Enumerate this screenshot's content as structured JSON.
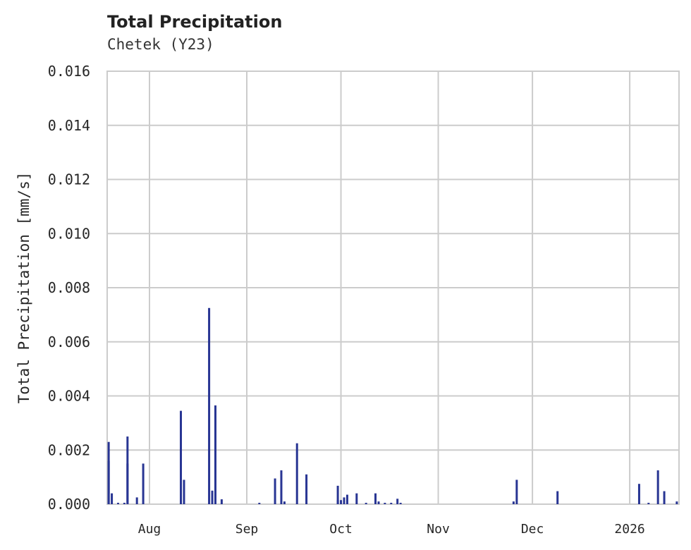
{
  "chart_data": {
    "type": "bar",
    "title": "Total Precipitation",
    "subtitle": "Chetek (Y23)",
    "xlabel": "",
    "ylabel": "Total Precipitation [mm/s]",
    "ylim": [
      0,
      0.016
    ],
    "yticks": [
      "0.000",
      "0.002",
      "0.004",
      "0.006",
      "0.008",
      "0.010",
      "0.012",
      "0.014",
      "0.016"
    ],
    "xticks": [
      "Aug",
      "Sep",
      "Oct",
      "Nov",
      "Dec",
      "2026"
    ],
    "grid": true,
    "color": "#283593",
    "x_range": [
      "2025-07-18",
      "2026-01-17"
    ],
    "points": [
      {
        "date": "2025-07-19",
        "value": 0.0016
      },
      {
        "date": "2025-07-19",
        "value": 0.0023
      },
      {
        "date": "2025-07-20",
        "value": 0.0004
      },
      {
        "date": "2025-07-22",
        "value": 5e-05
      },
      {
        "date": "2025-07-24",
        "value": 5e-05
      },
      {
        "date": "2025-07-25",
        "value": 0.0025
      },
      {
        "date": "2025-07-25",
        "value": 0.0015
      },
      {
        "date": "2025-07-28",
        "value": 0.00025
      },
      {
        "date": "2025-07-30",
        "value": 0.0015
      },
      {
        "date": "2025-08-11",
        "value": 0.00345
      },
      {
        "date": "2025-08-12",
        "value": 0.0009
      },
      {
        "date": "2025-08-20",
        "value": 0.00725
      },
      {
        "date": "2025-08-21",
        "value": 0.0005
      },
      {
        "date": "2025-08-22",
        "value": 0.00365
      },
      {
        "date": "2025-08-24",
        "value": 0.00018
      },
      {
        "date": "2025-09-05",
        "value": 5e-05
      },
      {
        "date": "2025-09-10",
        "value": 0.00095
      },
      {
        "date": "2025-09-12",
        "value": 0.00125
      },
      {
        "date": "2025-09-13",
        "value": 0.0001
      },
      {
        "date": "2025-09-17",
        "value": 0.00225
      },
      {
        "date": "2025-09-20",
        "value": 0.0011
      },
      {
        "date": "2025-09-30",
        "value": 0.00015
      },
      {
        "date": "2025-09-30",
        "value": 0.00068
      },
      {
        "date": "2025-10-01",
        "value": 0.00015
      },
      {
        "date": "2025-10-02",
        "value": 0.00025
      },
      {
        "date": "2025-10-03",
        "value": 0.00035
      },
      {
        "date": "2025-10-06",
        "value": 0.0004
      },
      {
        "date": "2025-10-09",
        "value": 5e-05
      },
      {
        "date": "2025-10-12",
        "value": 0.0004
      },
      {
        "date": "2025-10-13",
        "value": 0.0001
      },
      {
        "date": "2025-10-15",
        "value": 5e-05
      },
      {
        "date": "2025-10-17",
        "value": 5e-05
      },
      {
        "date": "2025-10-19",
        "value": 0.0002
      },
      {
        "date": "2025-10-20",
        "value": 5e-05
      },
      {
        "date": "2025-11-25",
        "value": 0.0001
      },
      {
        "date": "2025-11-26",
        "value": 0.0009
      },
      {
        "date": "2025-12-09",
        "value": 0.00048
      },
      {
        "date": "2026-01-04",
        "value": 0.00075
      },
      {
        "date": "2026-01-07",
        "value": 5e-05
      },
      {
        "date": "2026-01-10",
        "value": 0.00125
      },
      {
        "date": "2026-01-12",
        "value": 0.00048
      },
      {
        "date": "2026-01-16",
        "value": 0.0001
      }
    ]
  }
}
